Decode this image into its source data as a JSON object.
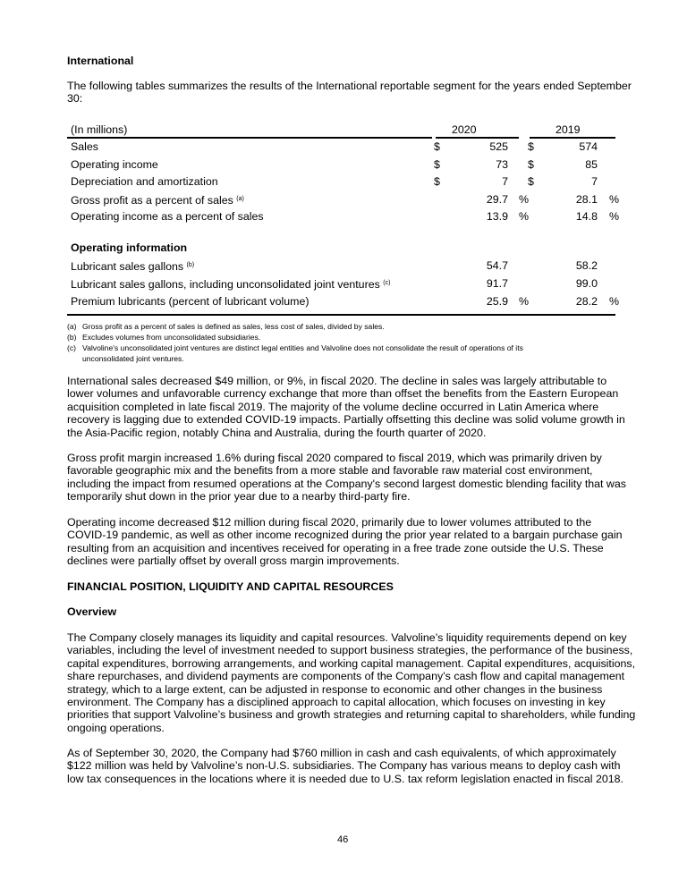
{
  "heading": "International",
  "intro": [
    "The following tables summarizes the results of the International reportable segment for the years ended September",
    "30:"
  ],
  "table": {
    "unit_label": "(In millions)",
    "col_2020": "2020",
    "col_2019": "2019",
    "rows": [
      {
        "label": "Sales",
        "d1": "$",
        "v1": "525",
        "p1": "",
        "d2": "$",
        "v2": "574",
        "p2": ""
      },
      {
        "label": "Operating income",
        "d1": "$",
        "v1": "73",
        "p1": "",
        "d2": "$",
        "v2": "85",
        "p2": ""
      },
      {
        "label": "Depreciation and amortization",
        "d1": "$",
        "v1": "7",
        "p1": "",
        "d2": "$",
        "v2": "7",
        "p2": ""
      },
      {
        "label": "Gross profit as a percent of sales",
        "sup": "(a)",
        "d1": "",
        "v1": "29.7",
        "p1": "%",
        "d2": "",
        "v2": "28.1",
        "p2": "%"
      },
      {
        "label": "Operating income as a percent of sales",
        "d1": "",
        "v1": "13.9",
        "p1": "%",
        "d2": "",
        "v2": "14.8",
        "p2": "%"
      }
    ],
    "section_label": "Operating information",
    "op_rows": [
      {
        "label": "Lubricant sales gallons",
        "sup": "(b)",
        "v1": "54.7",
        "p1": "",
        "v2": "58.2",
        "p2": ""
      },
      {
        "label": "Lubricant sales gallons, including unconsolidated joint ventures",
        "sup": "(c)",
        "v1": "91.7",
        "p1": "",
        "v2": "99.0",
        "p2": ""
      },
      {
        "label": "Premium lubricants (percent of lubricant volume)",
        "v1": "25.9",
        "p1": "%",
        "v2": "28.2",
        "p2": "%"
      }
    ]
  },
  "footnotes": [
    {
      "key": "(a)",
      "lines": [
        "Gross profit as a percent of sales is defined as sales, less cost of sales, divided by sales."
      ]
    },
    {
      "key": "(b)",
      "lines": [
        "Excludes volumes from unconsolidated subsidiaries."
      ]
    },
    {
      "key": "(c)",
      "lines": [
        "Valvoline's unconsolidated joint ventures are distinct legal entities and Valvoline does not consolidate the result of operations of its",
        "unconsolidated joint ventures."
      ]
    }
  ],
  "paragraphs": {
    "sales": [
      "International sales decreased $49 million, or 9%, in fiscal 2020. The decline in sales was largely attributable to",
      "lower volumes and unfavorable currency exchange that more than offset the benefits from the Eastern European",
      "acquisition completed in late fiscal 2019. The majority of the volume decline occurred in Latin America where",
      "recovery is lagging due to extended COVID-19 impacts. Partially offsetting this decline was solid volume growth in",
      "the Asia-Pacific region, notably China and Australia, during the fourth quarter of 2020."
    ],
    "gross": [
      "Gross profit margin increased 1.6% during fiscal 2020 compared to fiscal 2019, which was primarily driven by",
      "favorable geographic mix and the benefits from a more stable and favorable raw material cost environment,",
      "including the impact from resumed operations at the Company's second largest domestic blending facility that was",
      "temporarily shut down in the prior year due to a nearby third-party fire."
    ],
    "opinc": [
      "Operating income decreased $12 million during fiscal 2020, primarily due to lower volumes attributed to the",
      "COVID-19 pandemic, as well as other income recognized during the prior year related to a bargain purchase gain",
      "resulting from an acquisition and incentives received for operating in a free trade zone outside the U.S. These",
      "declines were partially offset by overall gross margin improvements."
    ],
    "fin_heading": "FINANCIAL POSITION, LIQUIDITY AND CAPITAL RESOURCES",
    "overview_heading": "Overview",
    "overview": [
      "The Company closely manages its liquidity and capital resources. Valvoline’s liquidity requirements depend on key",
      "variables, including the level of investment needed to support business strategies, the performance of the business,",
      "capital expenditures, borrowing arrangements, and working capital management. Capital expenditures, acquisitions,",
      "share repurchases, and dividend payments are components of the Company’s cash flow and capital management",
      "strategy, which to a large extent, can be adjusted in response to economic and other changes in the business",
      "environment. The Company has a disciplined approach to capital allocation, which focuses on investing in key",
      "priorities that support Valvoline’s business and growth strategies and returning capital to shareholders, while funding",
      "ongoing operations."
    ],
    "cash": [
      "As of September 30, 2020, the Company had $760 million in cash and cash equivalents, of which approximately",
      "$122 million was held by Valvoline’s non-U.S. subsidiaries. The Company has various means to deploy cash with",
      "low tax consequences in the locations where it is needed due to U.S. tax reform legislation enacted in fiscal 2018."
    ]
  },
  "page_number": "46"
}
